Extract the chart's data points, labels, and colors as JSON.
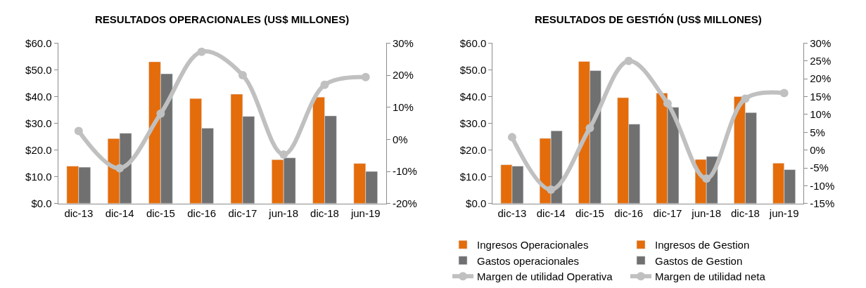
{
  "chart_data": [
    {
      "type": "bar",
      "title": "RESULTADOS OPERACIONALES (US$ MILLONES)",
      "categories": [
        "dic-13",
        "dic-14",
        "dic-15",
        "dic-16",
        "dic-17",
        "jun-18",
        "dic-18",
        "jun-19"
      ],
      "series": [
        {
          "name": "Ingresos Operacionales",
          "color": "#e46c0a",
          "values": [
            14.0,
            24.3,
            53.0,
            39.3,
            40.9,
            16.4,
            39.8,
            15.0
          ]
        },
        {
          "name": "Gastos operacionales",
          "color": "#707070",
          "values": [
            13.6,
            26.3,
            48.5,
            28.2,
            32.6,
            17.1,
            32.8,
            12.0
          ]
        },
        {
          "name": "Margen de utilidad Operativa",
          "type": "line",
          "axis": "y2",
          "color": "#c0c0c0",
          "marker": "circle",
          "values": [
            2.6,
            -9.0,
            8.0,
            27.3,
            20.0,
            -4.7,
            17.0,
            19.4
          ]
        }
      ],
      "ylim": [
        0,
        60
      ],
      "yticks": [
        {
          "value": 0,
          "label": "$0.0"
        },
        {
          "value": 10,
          "label": "$10.0"
        },
        {
          "value": 20,
          "label": "$20.0"
        },
        {
          "value": 30,
          "label": "$30.0"
        },
        {
          "value": 40,
          "label": "$40.0"
        },
        {
          "value": 50,
          "label": "$50.0"
        },
        {
          "value": 60,
          "label": "$60.0"
        }
      ],
      "y2lim": [
        -20,
        30
      ],
      "y2ticks": [
        {
          "value": -20,
          "label": "-20%"
        },
        {
          "value": -10,
          "label": "-10%"
        },
        {
          "value": 0,
          "label": "0%"
        },
        {
          "value": 10,
          "label": "10%"
        },
        {
          "value": 20,
          "label": "20%"
        },
        {
          "value": 30,
          "label": "30%"
        }
      ],
      "legend": "bottom"
    },
    {
      "type": "bar",
      "title": "RESULTADOS DE GESTIÓN (US$ MILLONES)",
      "categories": [
        "dic-13",
        "dic-14",
        "dic-15",
        "dic-16",
        "dic-17",
        "jun-18",
        "dic-18",
        "jun-19"
      ],
      "series": [
        {
          "name": "Ingresos de Gestion",
          "color": "#e46c0a",
          "values": [
            14.5,
            24.4,
            53.1,
            39.6,
            41.3,
            16.5,
            40.0,
            15.1
          ]
        },
        {
          "name": "Gastos de Gestion",
          "color": "#707070",
          "values": [
            14.0,
            27.2,
            49.7,
            29.7,
            36.0,
            17.6,
            34.0,
            12.7
          ]
        },
        {
          "name": "Margen de utilidad neta",
          "type": "line",
          "axis": "y2",
          "color": "#c0c0c0",
          "marker": "circle",
          "values": [
            3.6,
            -11.1,
            6.2,
            25.0,
            13.1,
            -8.0,
            14.4,
            16.0
          ]
        }
      ],
      "ylim": [
        0,
        60
      ],
      "yticks": [
        {
          "value": 0,
          "label": "$0.0"
        },
        {
          "value": 10,
          "label": "$10.0"
        },
        {
          "value": 20,
          "label": "$20.0"
        },
        {
          "value": 30,
          "label": "$30.0"
        },
        {
          "value": 40,
          "label": "$40.0"
        },
        {
          "value": 50,
          "label": "$50.0"
        },
        {
          "value": 60,
          "label": "$60.0"
        }
      ],
      "y2lim": [
        -15,
        30
      ],
      "y2ticks": [
        {
          "value": -15,
          "label": "-15%"
        },
        {
          "value": -10,
          "label": "-10%"
        },
        {
          "value": -5,
          "label": "-5%"
        },
        {
          "value": 0,
          "label": "0%"
        },
        {
          "value": 5,
          "label": "5%"
        },
        {
          "value": 10,
          "label": "10%"
        },
        {
          "value": 15,
          "label": "15%"
        },
        {
          "value": 20,
          "label": "20%"
        },
        {
          "value": 25,
          "label": "25%"
        },
        {
          "value": 30,
          "label": "30%"
        }
      ],
      "legend": "bottom"
    }
  ]
}
